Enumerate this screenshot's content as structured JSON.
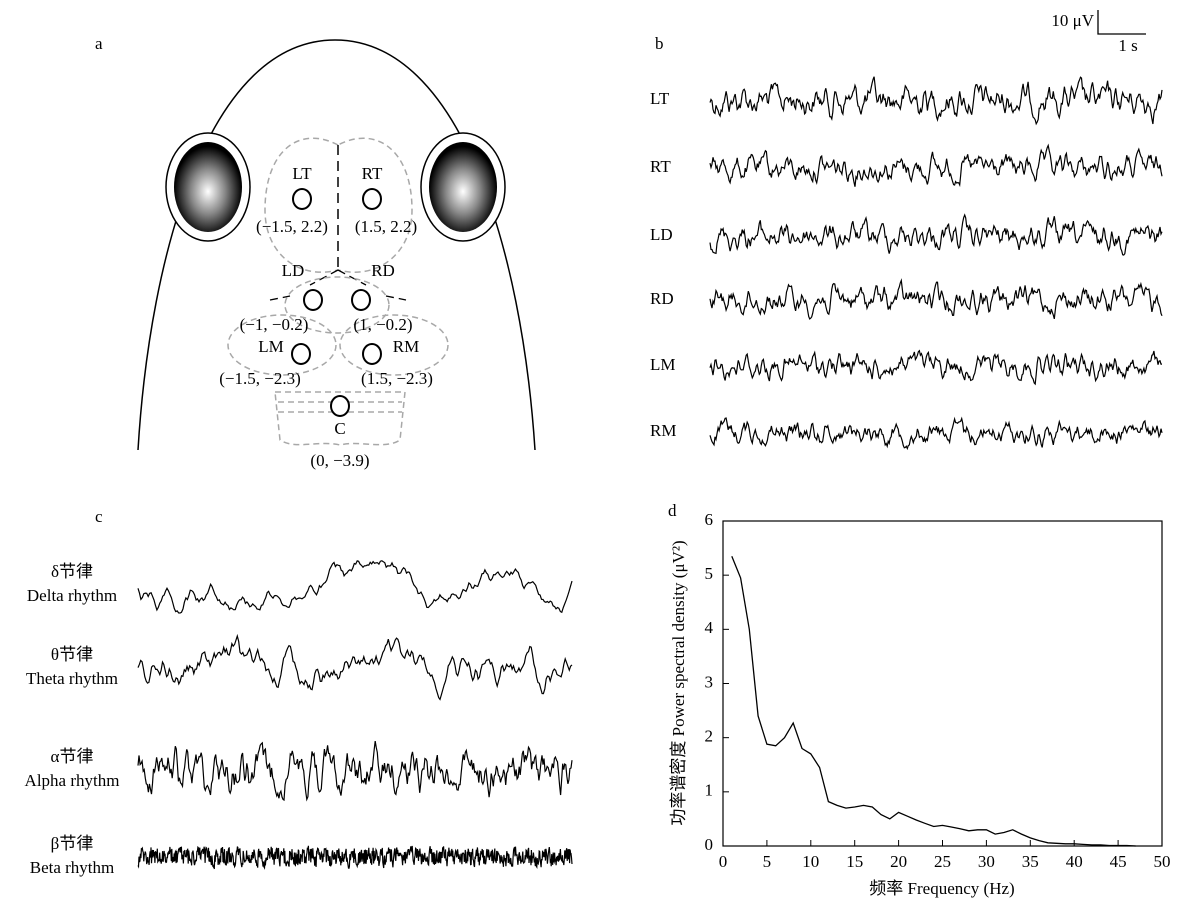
{
  "panel_a": {
    "letter": "a",
    "electrodes": [
      {
        "label": "LT",
        "coord": "(−1.5, 2.2)"
      },
      {
        "label": "RT",
        "coord": "(1.5, 2.2)"
      },
      {
        "label": "LD",
        "coord": "(−1, −0.2)"
      },
      {
        "label": "RD",
        "coord": "(1, −0.2)"
      },
      {
        "label": "LM",
        "coord": "(−1.5, −2.3)"
      },
      {
        "label": "RM",
        "coord": "(1.5, −2.3)"
      },
      {
        "label": "C",
        "coord": "(0, −3.9)"
      }
    ]
  },
  "panel_b": {
    "letter": "b",
    "scale_amplitude": "10 μV",
    "scale_time": "1 s",
    "channels": [
      "LT",
      "RT",
      "LD",
      "RD",
      "LM",
      "RM"
    ]
  },
  "panel_c": {
    "letter": "c",
    "rhythms": [
      {
        "name_cn": "δ节律",
        "name_en": "Delta rhythm"
      },
      {
        "name_cn": "θ节律",
        "name_en": "Theta rhythm"
      },
      {
        "name_cn": "α节律",
        "name_en": "Alpha rhythm"
      },
      {
        "name_cn": "β节律",
        "name_en": "Beta rhythm"
      }
    ]
  },
  "chart_data": {
    "type": "line",
    "letter": "d",
    "x_label": "频率 Frequency (Hz)",
    "y_label": "功率谱密度 Power spectral density (μV²)",
    "x": [
      1,
      2,
      3,
      4,
      5,
      6,
      7,
      8,
      9,
      10,
      11,
      12,
      13,
      14,
      15,
      16,
      17,
      18,
      19,
      20,
      21,
      22,
      23,
      24,
      25,
      26,
      27,
      28,
      29,
      30,
      31,
      32,
      33,
      34,
      35,
      36,
      37,
      38,
      39,
      40,
      41,
      42,
      43,
      44,
      45,
      46,
      47
    ],
    "values": [
      5.35,
      4.95,
      4.0,
      2.4,
      1.88,
      1.85,
      2.0,
      2.27,
      1.8,
      1.7,
      1.45,
      0.82,
      0.75,
      0.7,
      0.72,
      0.75,
      0.72,
      0.58,
      0.5,
      0.62,
      0.55,
      0.48,
      0.42,
      0.36,
      0.38,
      0.35,
      0.32,
      0.28,
      0.3,
      0.3,
      0.22,
      0.25,
      0.3,
      0.22,
      0.15,
      0.1,
      0.06,
      0.05,
      0.04,
      0.04,
      0.03,
      0.02,
      0.02,
      0.01,
      0.01,
      0.01,
      0
    ],
    "color": "#000000",
    "xlim": [
      0,
      50
    ],
    "ylim": [
      0,
      6
    ],
    "xticks": [
      0,
      5,
      10,
      15,
      20,
      25,
      30,
      35,
      40,
      45,
      50
    ],
    "yticks": [
      0,
      1,
      2,
      3,
      4,
      5,
      6
    ]
  }
}
